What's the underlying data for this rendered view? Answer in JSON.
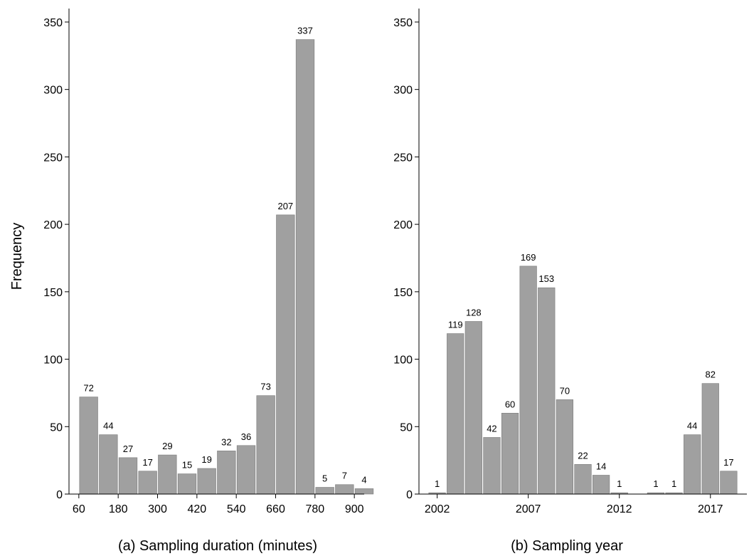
{
  "figure": {
    "ylabel": "Frequency"
  },
  "chart_data": [
    {
      "type": "bar",
      "caption": "(a) Sampling duration (minutes)",
      "ylabel": "Frequency",
      "ylim": [
        0,
        360
      ],
      "yticks": [
        0,
        50,
        100,
        150,
        200,
        250,
        300,
        350
      ],
      "x_range": [
        30,
        930
      ],
      "bin_width": 60,
      "xticks": [
        60,
        180,
        300,
        420,
        540,
        660,
        780,
        900
      ],
      "x": [
        90,
        150,
        210,
        270,
        330,
        390,
        450,
        510,
        570,
        630,
        690,
        750,
        810,
        870,
        930
      ],
      "values": [
        72,
        44,
        27,
        17,
        29,
        15,
        19,
        32,
        36,
        73,
        207,
        337,
        5,
        7,
        4
      ],
      "bar_color": "#a0a0a0",
      "grid": false
    },
    {
      "type": "bar",
      "caption": "(b) Sampling year",
      "ylim": [
        0,
        360
      ],
      "yticks": [
        0,
        50,
        100,
        150,
        200,
        250,
        300,
        350
      ],
      "x_range": [
        2001,
        2019
      ],
      "bin_width": 1,
      "xticks": [
        2002,
        2007,
        2012,
        2017
      ],
      "x": [
        2002,
        2003,
        2004,
        2005,
        2006,
        2007,
        2008,
        2009,
        2010,
        2011,
        2012,
        2014,
        2015,
        2016,
        2017,
        2018
      ],
      "values": [
        1,
        119,
        128,
        42,
        60,
        169,
        153,
        70,
        22,
        14,
        1,
        1,
        1,
        44,
        82,
        17
      ],
      "bar_color": "#a0a0a0",
      "grid": false
    }
  ]
}
